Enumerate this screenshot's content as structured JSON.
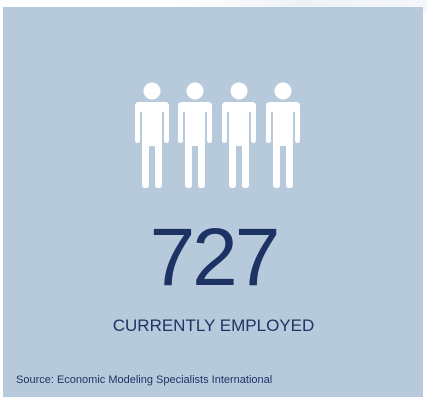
{
  "stat": {
    "value": "727",
    "label": "CURRENTLY EMPLOYED",
    "icon": "people-icon",
    "icon_count": 4
  },
  "footer": {
    "source": "Source: Economic Modeling Specialists International"
  },
  "colors": {
    "panel": "#b7cadc",
    "text": "#1d3364",
    "icon": "#ffffff"
  }
}
